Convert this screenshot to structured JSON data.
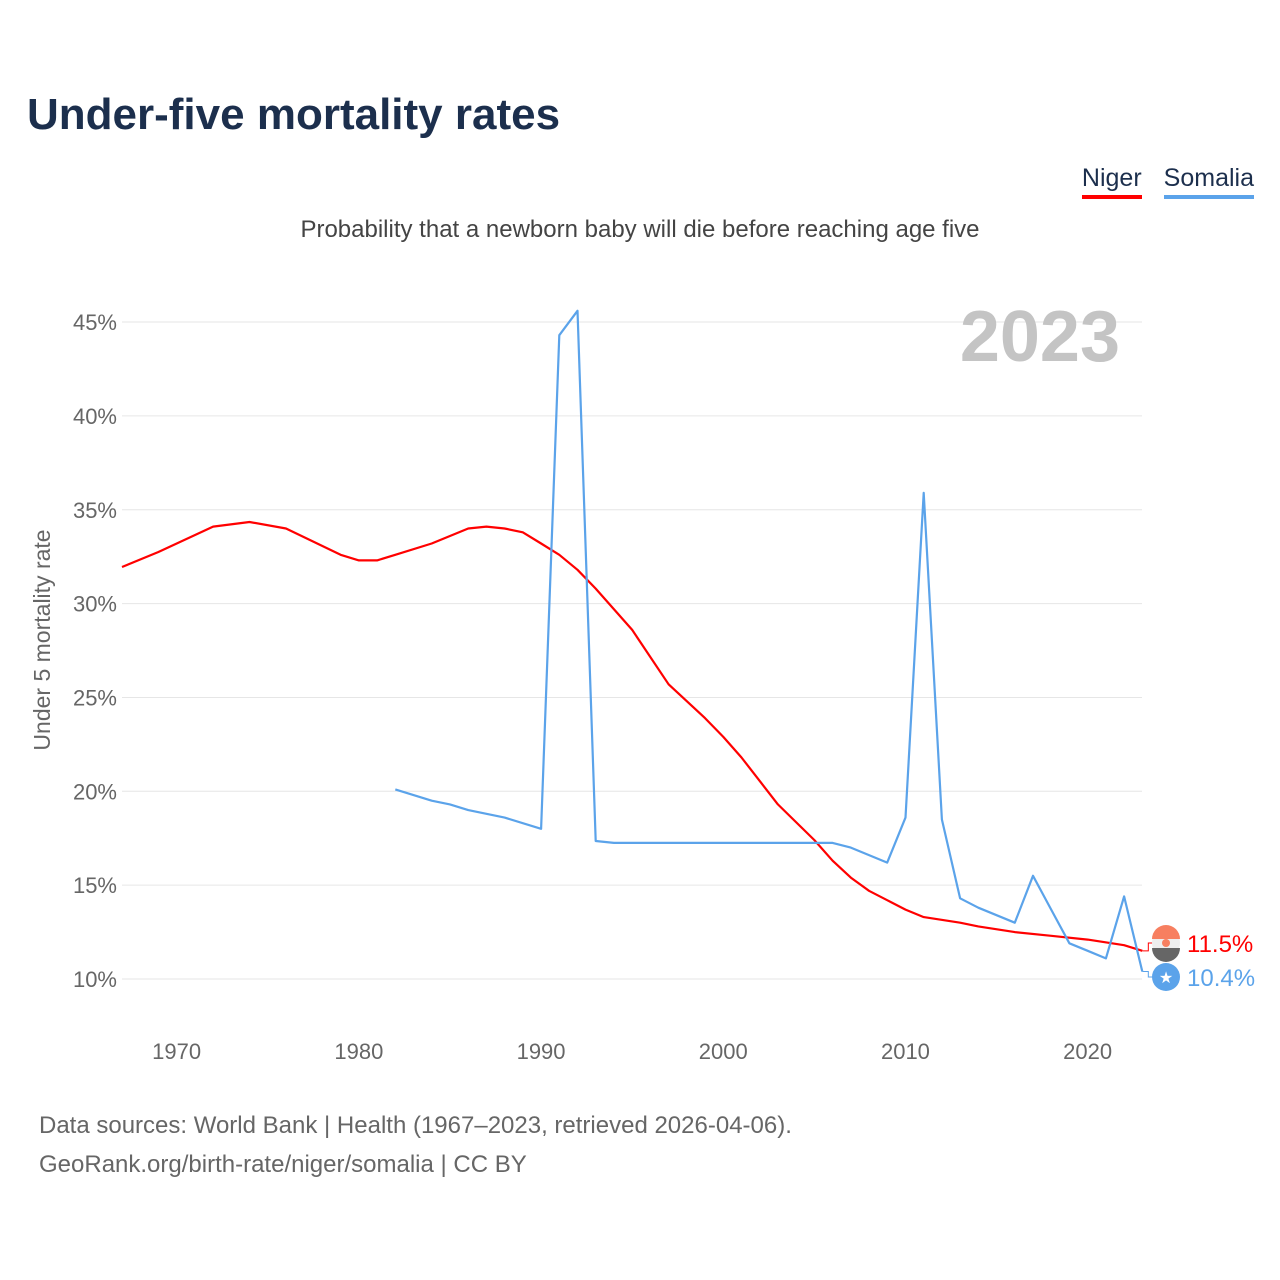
{
  "title": "Under-five mortality rates",
  "subtitle": "Probability that a newborn baby will die before reaching age five",
  "year_watermark": "2023",
  "footer": {
    "line1": "Data sources: World Bank | Health (1967–2023, retrieved 2026-04-06).",
    "line2": "GeoRank.org/birth-rate/niger/somalia | CC BY"
  },
  "chart_data": {
    "type": "line",
    "title": "Under-five mortality rates",
    "xlabel": "",
    "ylabel": "Under 5 mortality rate",
    "xlim": [
      1967,
      2023
    ],
    "ylim": [
      8,
      46
    ],
    "yticks": [
      10,
      15,
      20,
      25,
      30,
      35,
      40,
      45
    ],
    "ytick_labels": [
      "10%",
      "15%",
      "20%",
      "25%",
      "30%",
      "35%",
      "40%",
      "45%"
    ],
    "xticks": [
      1970,
      1980,
      1990,
      2000,
      2010,
      2020
    ],
    "xtick_labels": [
      "1970",
      "1980",
      "1990",
      "2000",
      "2010",
      "2020"
    ],
    "grid": true,
    "legend": "top-right",
    "series": [
      {
        "name": "Niger",
        "color": "#ff0000",
        "end_label": "11.5%",
        "x": [
          1967,
          1969,
          1972,
          1974,
          1976,
          1979,
          1980,
          1981,
          1982,
          1984,
          1986,
          1987,
          1988,
          1989,
          1990,
          1991,
          1992,
          1993,
          1995,
          1997,
          1999,
          2000,
          2001,
          2003,
          2005,
          2006,
          2007,
          2008,
          2009,
          2010,
          2011,
          2013,
          2014,
          2016,
          2018,
          2020,
          2022,
          2023
        ],
        "y": [
          31.95,
          32.75,
          34.1,
          34.35,
          34.0,
          32.6,
          32.3,
          32.3,
          32.6,
          33.2,
          34.0,
          34.1,
          34.0,
          33.8,
          33.2,
          32.6,
          31.8,
          30.8,
          28.6,
          25.7,
          23.9,
          22.9,
          21.8,
          19.3,
          17.4,
          16.3,
          15.4,
          14.7,
          14.2,
          13.7,
          13.3,
          13.0,
          12.8,
          12.5,
          12.3,
          12.1,
          11.8,
          11.5
        ]
      },
      {
        "name": "Somalia",
        "color": "#5ba3ea",
        "end_label": "10.4%",
        "x": [
          1982,
          1984,
          1985,
          1986,
          1988,
          1990,
          1991,
          1992,
          1993,
          1994,
          2006,
          2007,
          2009,
          2010,
          2011,
          2012,
          2013,
          2014,
          2016,
          2017,
          2018,
          2019,
          2020,
          2021,
          2022,
          2023
        ],
        "y": [
          20.1,
          19.5,
          19.3,
          19.0,
          18.6,
          18.0,
          44.3,
          45.6,
          17.35,
          17.25,
          17.25,
          17.0,
          16.2,
          18.6,
          35.9,
          18.5,
          14.3,
          13.8,
          13.0,
          15.5,
          13.7,
          11.9,
          11.5,
          11.1,
          14.4,
          10.4
        ]
      }
    ]
  }
}
